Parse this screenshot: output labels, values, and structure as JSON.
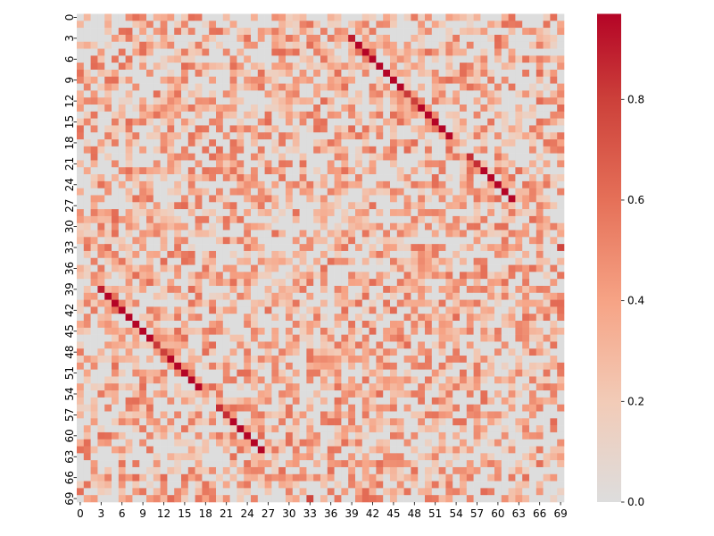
{
  "chart_data": {
    "type": "heatmap",
    "title": "",
    "xlabel": "",
    "ylabel": "",
    "n": 70,
    "diagonal_pairs": [
      [
        0,
        0
      ],
      [
        1,
        1
      ],
      [
        2,
        2
      ],
      [
        3,
        39
      ],
      [
        4,
        40
      ],
      [
        5,
        41
      ],
      [
        6,
        42
      ],
      [
        7,
        43
      ],
      [
        8,
        44
      ],
      [
        9,
        45
      ],
      [
        10,
        46
      ],
      [
        11,
        47
      ],
      [
        12,
        48
      ],
      [
        13,
        49
      ],
      [
        14,
        50
      ],
      [
        15,
        51
      ],
      [
        16,
        52
      ],
      [
        17,
        53
      ],
      [
        18,
        18
      ],
      [
        19,
        19
      ],
      [
        20,
        56
      ],
      [
        21,
        57
      ],
      [
        22,
        58
      ],
      [
        23,
        59
      ],
      [
        24,
        60
      ],
      [
        25,
        61
      ],
      [
        26,
        62
      ],
      [
        27,
        27
      ],
      [
        28,
        28
      ],
      [
        29,
        29
      ],
      [
        30,
        30
      ],
      [
        31,
        31
      ],
      [
        32,
        32
      ],
      [
        33,
        69
      ],
      [
        34,
        34
      ],
      [
        35,
        35
      ],
      [
        36,
        36
      ],
      [
        37,
        37
      ],
      [
        38,
        38
      ],
      [
        54,
        54
      ],
      [
        55,
        55
      ],
      [
        63,
        63
      ],
      [
        64,
        64
      ],
      [
        65,
        65
      ],
      [
        66,
        66
      ],
      [
        67,
        67
      ],
      [
        68,
        68
      ]
    ],
    "strong_values": [
      {
        "cells": [
          [
            3,
            39
          ],
          [
            39,
            3
          ]
        ],
        "value": 0.9
      },
      {
        "cells": [
          [
            20,
            56
          ],
          [
            56,
            20
          ]
        ],
        "value": 0.85
      },
      {
        "cells": [
          [
            21,
            57
          ],
          [
            57,
            21
          ]
        ],
        "value": 0.85
      },
      {
        "cells": [
          [
            33,
            69
          ],
          [
            69,
            33
          ]
        ],
        "value": 0.78
      },
      {
        "cells": [
          [
            11,
            47
          ],
          [
            47,
            11
          ]
        ],
        "value": 0.82
      },
      {
        "cells": [
          [
            12,
            48
          ],
          [
            48,
            12
          ]
        ],
        "value": 0.8
      }
    ],
    "value_range": [
      0.0,
      0.97
    ],
    "x_tick_labels": [
      "0",
      "3",
      "6",
      "9",
      "12",
      "15",
      "18",
      "21",
      "24",
      "27",
      "30",
      "33",
      "36",
      "39",
      "42",
      "45",
      "48",
      "51",
      "54",
      "57",
      "60",
      "63",
      "66",
      "69"
    ],
    "y_tick_labels": [
      "0",
      "3",
      "6",
      "9",
      "12",
      "15",
      "18",
      "21",
      "24",
      "27",
      "30",
      "33",
      "36",
      "39",
      "42",
      "45",
      "48",
      "51",
      "54",
      "57",
      "60",
      "63",
      "66",
      "69"
    ],
    "colorbar": {
      "ticks": [
        0.0,
        0.2,
        0.4,
        0.6,
        0.8
      ],
      "tick_labels": [
        "0.0",
        "0.2",
        "0.4",
        "0.6",
        "0.8"
      ],
      "colormap": "coolwarm-center-gray",
      "stops": [
        {
          "v": 0.0,
          "color": "#dddddd"
        },
        {
          "v": 0.2,
          "color": "#f2cbb7"
        },
        {
          "v": 0.4,
          "color": "#f6a385"
        },
        {
          "v": 0.6,
          "color": "#e57058"
        },
        {
          "v": 0.8,
          "color": "#cc403a"
        },
        {
          "v": 0.97,
          "color": "#b40426"
        }
      ]
    },
    "grid": false,
    "legend": "colorbar-right"
  }
}
